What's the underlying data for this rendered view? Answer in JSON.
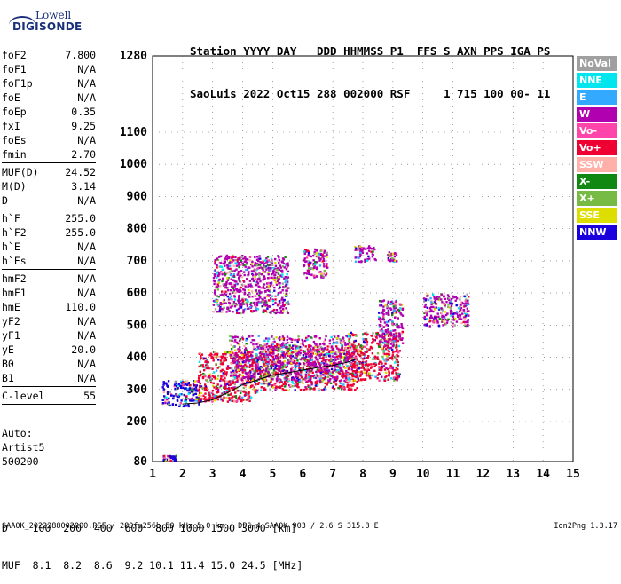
{
  "logo": {
    "line1": "Lowell",
    "line2": "DIGISONDE"
  },
  "header": {
    "line1": "Station YYYY DAY   DDD HHMMSS P1  FFS S AXN PPS IGA PS",
    "line2": "SaoLuis 2022 Oct15 288 002000 RSF     1 715 100 00- 11"
  },
  "params_block1": [
    {
      "label": "foF2",
      "value": "7.800"
    },
    {
      "label": "foF1",
      "value": "N/A"
    },
    {
      "label": "foF1p",
      "value": "N/A"
    },
    {
      "label": "foE",
      "value": "N/A"
    },
    {
      "label": "foEp",
      "value": "0.35"
    },
    {
      "label": "fxI",
      "value": "9.25"
    },
    {
      "label": "foEs",
      "value": "N/A"
    },
    {
      "label": "fmin",
      "value": "2.70"
    }
  ],
  "params_block2": [
    {
      "label": "MUF(D)",
      "value": "24.52"
    },
    {
      "label": "M(D)",
      "value": "3.14"
    },
    {
      "label": "D",
      "value": "N/A"
    }
  ],
  "params_block3": [
    {
      "label": "h`F",
      "value": "255.0"
    },
    {
      "label": "h`F2",
      "value": "255.0"
    },
    {
      "label": "h`E",
      "value": "N/A"
    },
    {
      "label": "h`Es",
      "value": "N/A"
    }
  ],
  "params_block4": [
    {
      "label": "hmF2",
      "value": "N/A"
    },
    {
      "label": "hmF1",
      "value": "N/A"
    },
    {
      "label": "hmE",
      "value": "110.0"
    },
    {
      "label": "yF2",
      "value": "N/A"
    },
    {
      "label": "yF1",
      "value": "N/A"
    },
    {
      "label": "yE",
      "value": "20.0"
    },
    {
      "label": "B0",
      "value": "N/A"
    },
    {
      "label": "B1",
      "value": "N/A"
    }
  ],
  "params_block5": [
    {
      "label": "C-level",
      "value": "55"
    }
  ],
  "auto": {
    "line1": "Auto:",
    "line2": "Artist5",
    "line3": "500200"
  },
  "legend": [
    {
      "label": "NoVal",
      "color": "#a0a0a0"
    },
    {
      "label": "NNE",
      "color": "#00e5ee"
    },
    {
      "label": "E",
      "color": "#33aaff"
    },
    {
      "label": "W",
      "color": "#b000b0"
    },
    {
      "label": "Vo-",
      "color": "#ff44aa"
    },
    {
      "label": "Vo+",
      "color": "#ee0033"
    },
    {
      "label": "SSW",
      "color": "#ffb0a8"
    },
    {
      "label": "X-",
      "color": "#118811"
    },
    {
      "label": "X+",
      "color": "#77bb44"
    },
    {
      "label": "SSE",
      "color": "#dddd00"
    },
    {
      "label": "NNW",
      "color": "#1a00dd"
    }
  ],
  "dmuf": {
    "line1": "D    100  200  400  600  800 1000 1500 3000 [km]",
    "line2": "MUF  8.1  8.2  8.6  9.2 10.1 11.4 15.0 24.5 [MHz]"
  },
  "footer": {
    "left": "SAA0K_2022288002000.RSF / 280fx256h 50 kHz 5.0 km / DPS-4 SAA0K 903 / 2.6 S 315.8 E",
    "right": "Ion2Png 1.3.17"
  },
  "chart_data": {
    "type": "scatter",
    "xlabel": "",
    "ylabel": "",
    "xlim": [
      1,
      15
    ],
    "ylim": [
      80,
      1280
    ],
    "x_ticks": [
      1,
      2,
      3,
      4,
      5,
      6,
      7,
      8,
      9,
      10,
      11,
      12,
      13,
      14,
      15
    ],
    "y_ticks": [
      80,
      200,
      300,
      400,
      500,
      600,
      700,
      800,
      900,
      1000,
      1100,
      1280
    ],
    "trace": {
      "name": "h'F trace",
      "x": [
        2.0,
        2.5,
        3.0,
        3.5,
        4.0,
        4.5,
        5.0,
        5.5,
        6.0,
        6.5,
        7.0,
        7.5,
        7.8
      ],
      "y": [
        255,
        258,
        268,
        290,
        315,
        330,
        345,
        352,
        360,
        368,
        375,
        385,
        395
      ]
    },
    "clusters": [
      {
        "x_range": [
          1.3,
          2.6
        ],
        "y_range": [
          250,
          330
        ],
        "dominant": "NNW"
      },
      {
        "x_range": [
          2.5,
          4.5
        ],
        "y_range": [
          265,
          420
        ],
        "dominant": "Vo+"
      },
      {
        "x_range": [
          4.5,
          7.8
        ],
        "y_range": [
          300,
          440
        ],
        "dominant": "Vo+"
      },
      {
        "x_range": [
          7.5,
          9.2
        ],
        "y_range": [
          330,
          480
        ],
        "dominant": "Vo+"
      },
      {
        "x_range": [
          3.5,
          7.5
        ],
        "y_range": [
          330,
          470
        ],
        "dominant": "W"
      },
      {
        "x_range": [
          3.0,
          5.5
        ],
        "y_range": [
          540,
          720
        ],
        "dominant": "W"
      },
      {
        "x_range": [
          6.0,
          6.8
        ],
        "y_range": [
          650,
          740
        ],
        "dominant": "W"
      },
      {
        "x_range": [
          7.7,
          8.4
        ],
        "y_range": [
          700,
          750
        ],
        "dominant": "W"
      },
      {
        "x_range": [
          8.8,
          9.1
        ],
        "y_range": [
          700,
          730
        ],
        "dominant": "W"
      },
      {
        "x_range": [
          8.5,
          9.3
        ],
        "y_range": [
          430,
          580
        ],
        "dominant": "W"
      },
      {
        "x_range": [
          10.0,
          11.5
        ],
        "y_range": [
          500,
          600
        ],
        "dominant": "W"
      },
      {
        "x_range": [
          1.3,
          1.8
        ],
        "y_range": [
          85,
          100
        ],
        "dominant": "NNW"
      }
    ]
  }
}
